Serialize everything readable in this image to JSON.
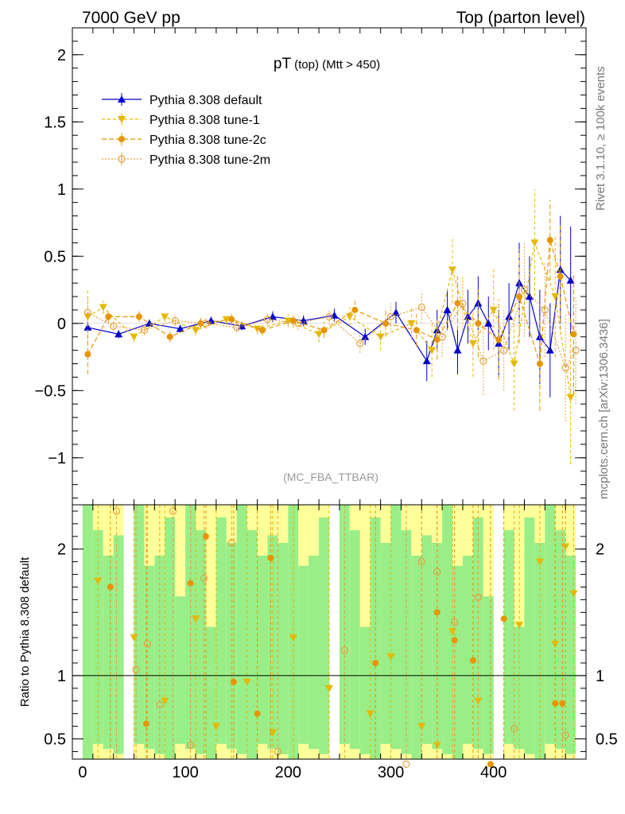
{
  "header": {
    "left": "7000 GeV pp",
    "right": "Top (parton level)"
  },
  "side_labels": {
    "rivet": "Rivet 3.1.10, ≥ 100k events",
    "mcplots": "mcplots.cern.ch [arXiv:1306.3436]"
  },
  "colors": {
    "default": "#0000cc",
    "tune1": "#e6b800",
    "tune2c": "#e69500",
    "tune2m": "#e6a040",
    "band_green": "#99ee88",
    "band_yellow": "#ffff99"
  },
  "chart_data": [
    {
      "type": "scatter",
      "title_main": "pT",
      "title_sub": "(top) (Mtt > 450)",
      "analysis_label": "(MC_FBA_TTBAR)",
      "xlim": [
        -10,
        490
      ],
      "ylim": [
        -1.35,
        2.2
      ],
      "y_ticks": [
        -1,
        -0.5,
        0,
        0.5,
        1,
        1.5,
        2
      ],
      "y_tick_labels": [
        "−1",
        "−0.5",
        "0",
        "0.5",
        "1",
        "1.5",
        "2"
      ],
      "legend_position": "top-left",
      "series": [
        {
          "name": "Pythia 8.308 default",
          "marker": "triangle-up",
          "x": [
            5,
            35,
            65,
            95,
            125,
            155,
            185,
            215,
            245,
            275,
            305,
            335,
            345,
            355,
            365,
            375,
            385,
            395,
            405,
            415,
            425,
            435,
            445,
            455,
            465,
            475
          ],
          "y": [
            -0.03,
            -0.08,
            0.0,
            -0.04,
            0.02,
            -0.02,
            0.05,
            0.02,
            0.06,
            -0.1,
            0.08,
            -0.28,
            -0.05,
            0.1,
            -0.2,
            0.05,
            0.15,
            0.0,
            -0.15,
            0.05,
            0.3,
            0.2,
            -0.1,
            -0.2,
            0.4,
            0.32
          ],
          "err": [
            0.04,
            0.03,
            0.03,
            0.03,
            0.03,
            0.03,
            0.04,
            0.04,
            0.05,
            0.06,
            0.08,
            0.15,
            0.15,
            0.15,
            0.18,
            0.2,
            0.2,
            0.2,
            0.25,
            0.25,
            0.3,
            0.3,
            0.35,
            0.35,
            0.4,
            0.4
          ]
        },
        {
          "name": "Pythia 8.308 tune-1",
          "marker": "triangle-down",
          "x": [
            5,
            20,
            50,
            80,
            110,
            140,
            170,
            200,
            230,
            260,
            290,
            320,
            340,
            360,
            380,
            400,
            420,
            440,
            460,
            475
          ],
          "y": [
            0.05,
            0.12,
            -0.1,
            0.05,
            -0.05,
            0.03,
            -0.04,
            0.02,
            -0.08,
            0.05,
            -0.1,
            0.0,
            -0.2,
            0.4,
            -0.15,
            0.1,
            -0.3,
            0.6,
            0.2,
            -0.55
          ],
          "err": [
            0.2,
            0.05,
            0.04,
            0.04,
            0.04,
            0.04,
            0.04,
            0.05,
            0.06,
            0.07,
            0.1,
            0.12,
            0.2,
            0.25,
            0.25,
            0.3,
            0.35,
            0.4,
            0.45,
            0.5
          ]
        },
        {
          "name": "Pythia 8.308 tune-2c",
          "marker": "circle",
          "x": [
            5,
            25,
            55,
            85,
            115,
            145,
            175,
            205,
            235,
            265,
            295,
            325,
            345,
            365,
            385,
            405,
            425,
            445,
            455,
            465,
            478
          ],
          "y": [
            -0.23,
            0.05,
            0.05,
            -0.1,
            0.0,
            0.03,
            -0.05,
            0.02,
            -0.05,
            0.1,
            0.0,
            -0.05,
            -0.12,
            0.15,
            0.0,
            -0.12,
            0.2,
            -0.3,
            0.62,
            0.35,
            -0.08
          ],
          "err": [
            0.15,
            0.05,
            0.04,
            0.04,
            0.04,
            0.04,
            0.04,
            0.05,
            0.06,
            0.07,
            0.1,
            0.12,
            0.15,
            0.2,
            0.25,
            0.3,
            0.35,
            0.35,
            0.3,
            0.4,
            0.45
          ]
        },
        {
          "name": "Pythia 8.308 tune-2m",
          "marker": "circle-open",
          "x": [
            5,
            30,
            60,
            90,
            120,
            150,
            180,
            210,
            240,
            270,
            300,
            330,
            350,
            370,
            390,
            410,
            430,
            450,
            470,
            480
          ],
          "y": [
            0.08,
            -0.02,
            -0.05,
            0.02,
            0.0,
            -0.03,
            0.03,
            0.0,
            0.05,
            -0.15,
            0.05,
            0.12,
            -0.1,
            0.15,
            -0.28,
            -0.2,
            0.25,
            0.1,
            -0.33,
            -0.2
          ],
          "err": [
            0.1,
            0.04,
            0.04,
            0.04,
            0.04,
            0.04,
            0.04,
            0.05,
            0.06,
            0.07,
            0.1,
            0.12,
            0.15,
            0.2,
            0.25,
            0.3,
            0.35,
            0.35,
            0.4,
            0.4
          ]
        }
      ]
    },
    {
      "type": "scatter",
      "ylabel": "Ratio to Pythia 8.308 default",
      "xlim": [
        -10,
        490
      ],
      "ylim": [
        0.34,
        2.35
      ],
      "y_ticks": [
        0.5,
        1,
        2
      ],
      "y_tick_labels": [
        "0.5",
        "1",
        "2"
      ],
      "x_ticks": [
        0,
        100,
        200,
        300,
        400
      ],
      "x_tick_labels": [
        "0",
        "100",
        "200",
        "300",
        "400"
      ],
      "reference_line": 1,
      "series": [
        {
          "name": "Pythia 8.308 tune-1",
          "marker": "triangle-down",
          "x": [
            15,
            50,
            80,
            110,
            130,
            160,
            185,
            205,
            240,
            280,
            300,
            330,
            345,
            360,
            385,
            425,
            445,
            460,
            470,
            478
          ],
          "y": [
            1.75,
            1.3,
            0.8,
            1.45,
            0.6,
            0.95,
            0.55,
            1.3,
            0.9,
            0.7,
            1.15,
            0.6,
            0.45,
            1.35,
            0.8,
            1.4,
            1.9,
            1.25,
            2.02,
            1.65
          ]
        },
        {
          "name": "Pythia 8.308 tune-2c",
          "marker": "circle",
          "x": [
            27,
            62,
            105,
            120,
            147,
            170,
            183,
            285,
            345,
            362,
            380,
            397,
            410,
            460,
            467
          ],
          "y": [
            1.7,
            0.62,
            1.73,
            2.1,
            0.95,
            0.7,
            1.93,
            1.1,
            1.5,
            1.28,
            1.12,
            0.3,
            1.45,
            0.78,
            0.78
          ]
        },
        {
          "name": "Pythia 8.308 tune-2m",
          "marker": "circle-open",
          "x": [
            33,
            52,
            63,
            75,
            88,
            105,
            118,
            145,
            190,
            255,
            315,
            330,
            345,
            362,
            385,
            420,
            470
          ],
          "y": [
            2.3,
            1.05,
            1.25,
            0.77,
            2.3,
            0.45,
            1.77,
            2.05,
            0.4,
            1.2,
            0.3,
            1.9,
            1.82,
            1.42,
            1.62,
            0.58,
            0.53
          ]
        }
      ]
    }
  ]
}
